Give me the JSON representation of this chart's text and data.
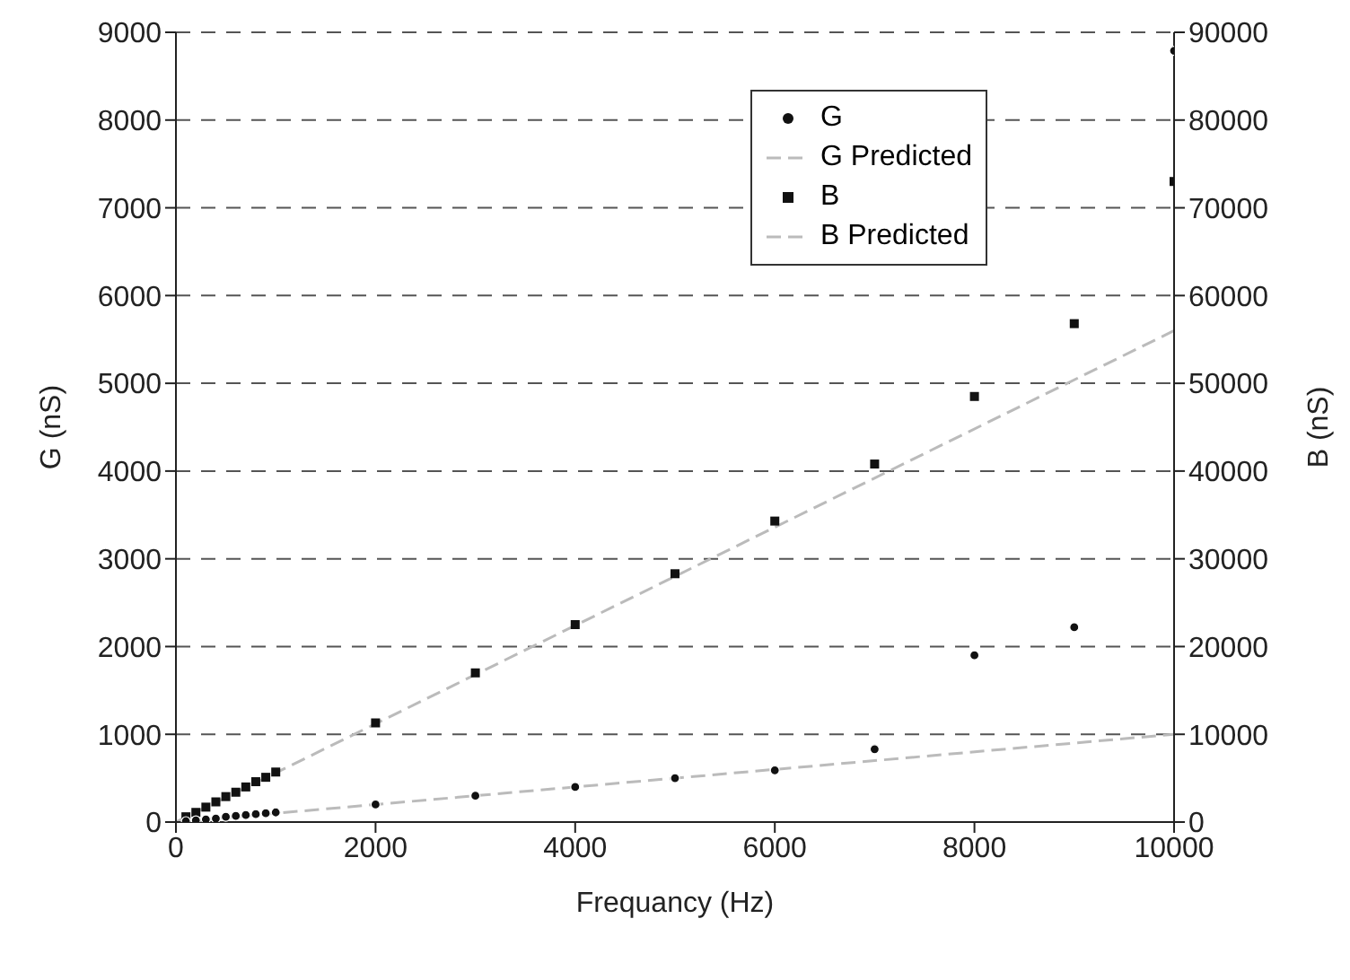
{
  "chart_data": {
    "type": "scatter",
    "xlabel": "Frequancy (Hz)",
    "ylabel": "G (nS)",
    "y2label": "B (nS)",
    "xlim": [
      0,
      10000
    ],
    "xticks": [
      0,
      2000,
      4000,
      6000,
      8000,
      10000
    ],
    "ylim": [
      0,
      9000
    ],
    "yticks": [
      0,
      1000,
      2000,
      3000,
      4000,
      5000,
      6000,
      7000,
      8000,
      9000
    ],
    "y2lim": [
      0,
      90000
    ],
    "y2ticks": [
      0,
      10000,
      20000,
      30000,
      40000,
      50000,
      60000,
      70000,
      80000,
      90000
    ],
    "grid": true,
    "legend": "top right",
    "series": [
      {
        "name": "G",
        "type": "scatter",
        "marker": "circle",
        "color": "#111111",
        "x": [
          100,
          200,
          300,
          400,
          500,
          600,
          700,
          800,
          900,
          1000,
          2000,
          3000,
          4000,
          5000,
          6000,
          7000,
          8000,
          9000,
          10000
        ],
        "values": [
          10,
          20,
          30,
          40,
          60,
          70,
          80,
          90,
          100,
          110,
          200,
          300,
          400,
          500,
          590,
          830,
          1900,
          2220,
          8790
        ]
      },
      {
        "name": "G Predicted",
        "type": "line",
        "marker": "none",
        "line_style": "dashed",
        "color": "#bbbbbb",
        "x": [
          0,
          10000
        ],
        "values": [
          0,
          1000
        ]
      },
      {
        "name": "B",
        "type": "scatter",
        "marker": "square",
        "axis": "y2",
        "color": "#111111",
        "x": [
          100,
          200,
          300,
          400,
          500,
          600,
          700,
          800,
          900,
          1000,
          2000,
          3000,
          4000,
          5000,
          6000,
          7000,
          8000,
          9000,
          10000
        ],
        "values": [
          600,
          1100,
          1700,
          2300,
          2900,
          3400,
          4000,
          4600,
          5100,
          5700,
          11300,
          17000,
          22500,
          28300,
          34300,
          40800,
          48500,
          56800,
          73000
        ]
      },
      {
        "name": "B Predicted",
        "type": "line",
        "marker": "none",
        "line_style": "dashed",
        "axis": "y2",
        "color": "#bbbbbb",
        "x": [
          0,
          10000
        ],
        "values": [
          0,
          56000
        ]
      }
    ]
  }
}
